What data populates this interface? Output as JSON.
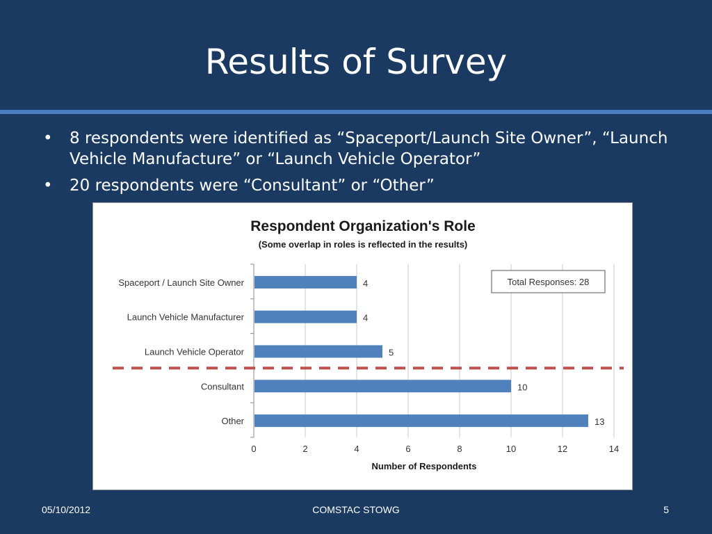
{
  "slide": {
    "title": "Results of Survey",
    "bullets": [
      "8 respondents were identified as “Spaceport/Launch Site Owner”, “Launch Vehicle Manufacture” or “Launch Vehicle Operator”",
      "20 respondents were “Consultant” or “Other”"
    ],
    "bullet_glyph": "•"
  },
  "footer": {
    "date": "05/10/2012",
    "center": "COMSTAC STOWG",
    "page": "5"
  },
  "chart_data": {
    "type": "bar",
    "orientation": "horizontal",
    "title": "Respondent Organization's Role",
    "subtitle": "(Some overlap in roles is reflected in the results)",
    "xlabel": "Number of Respondents",
    "ylabel": "",
    "categories": [
      "Spaceport / Launch Site Owner",
      "Launch Vehicle Manufacturer",
      "Launch Vehicle Operator",
      "Consultant",
      "Other"
    ],
    "values": [
      4,
      4,
      5,
      10,
      13
    ],
    "xlim": [
      0,
      14
    ],
    "xticks": [
      0,
      2,
      4,
      6,
      8,
      10,
      12,
      14
    ],
    "grid": "vertical",
    "bar_color": "#4f81bd",
    "annotation": "Total Responses: 28",
    "annotation_position": "top-right",
    "divider_color": "#c0504d",
    "divider_style": "dashed",
    "divider_after_category": "Launch Vehicle Operator"
  }
}
